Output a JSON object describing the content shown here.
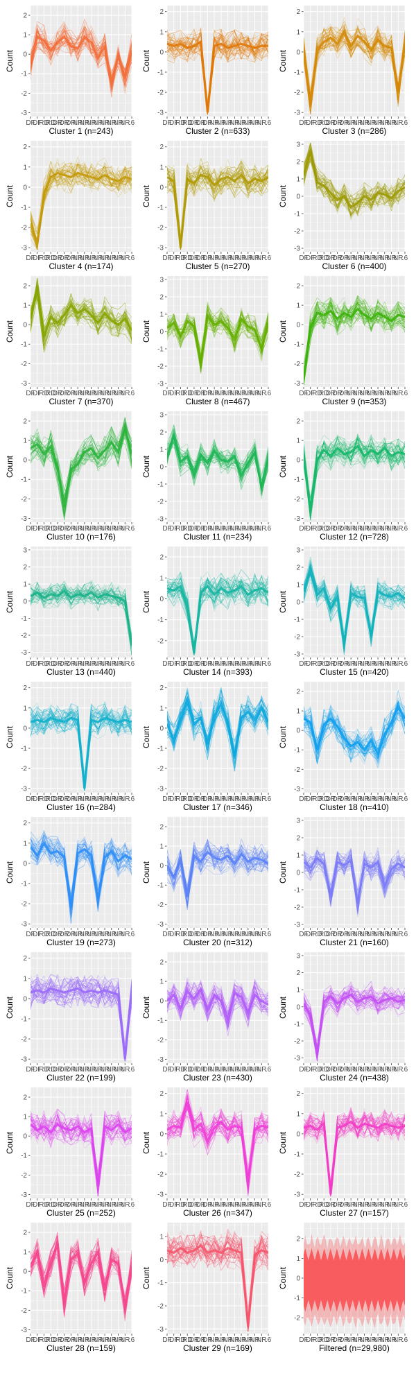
{
  "figure": {
    "ylabel": "Count",
    "xticks": [
      "DF",
      "DF",
      "RD",
      "RD",
      "DR",
      "DR",
      "DR",
      "NR",
      "NR",
      "NR",
      "NR",
      "NR",
      "NR",
      "NR",
      "NR",
      ".6"
    ],
    "yticks": [
      "-3",
      "-2",
      "-1",
      "0",
      "1",
      "2",
      "3"
    ]
  },
  "chart_data": [
    {
      "type": "line",
      "title": "Cluster 1 (n=243)",
      "color": "#F26E3B",
      "ylim": [
        -3.2,
        2.5
      ],
      "profile": [
        -0.5,
        0.9,
        0.7,
        0.2,
        0.6,
        0.9,
        0.4,
        0.3,
        0.9,
        0.6,
        -0.2,
        0.4,
        -1.5,
        -0.1,
        -1.2,
        0.2
      ]
    },
    {
      "type": "line",
      "title": "Cluster 2 (n=633)",
      "color": "#E07808",
      "ylim": [
        -3.2,
        2.3
      ],
      "profile": [
        0.4,
        0.3,
        0.4,
        0.2,
        0.3,
        0.5,
        -3.0,
        0.3,
        0.4,
        0.2,
        0.3,
        0.4,
        0.3,
        0.2,
        0.3,
        0.3
      ]
    },
    {
      "type": "line",
      "title": "Cluster 3 (n=286)",
      "color": "#D48A08",
      "ylim": [
        -3.2,
        2.3
      ],
      "profile": [
        0.2,
        -2.6,
        0.1,
        0.5,
        0.7,
        0.4,
        1.0,
        0.3,
        0.8,
        0.5,
        0.1,
        0.6,
        0.3,
        0.2,
        -2.0,
        0.4
      ]
    },
    {
      "type": "line",
      "title": "Cluster 4 (n=174)",
      "color": "#C49A0A",
      "ylim": [
        -3.2,
        2.3
      ],
      "profile": [
        -1.8,
        -2.8,
        -0.3,
        0.5,
        0.7,
        0.6,
        0.5,
        0.7,
        0.6,
        0.5,
        0.4,
        0.6,
        0.4,
        0.3,
        0.5,
        0.4
      ]
    },
    {
      "type": "line",
      "title": "Cluster 5 (n=270)",
      "color": "#B09A05",
      "ylim": [
        -3.2,
        2.3
      ],
      "profile": [
        0.5,
        0.3,
        -3.0,
        0.4,
        0.2,
        0.6,
        0.5,
        0.1,
        0.4,
        0.5,
        0.3,
        0.6,
        0.2,
        0.4,
        0.3,
        0.5
      ]
    },
    {
      "type": "line",
      "title": "Cluster 6 (n=400)",
      "color": "#9C9A06",
      "ylim": [
        -3.2,
        3.2
      ],
      "profile": [
        1.2,
        2.6,
        0.8,
        0.6,
        0.2,
        -0.2,
        0.0,
        -0.6,
        -0.4,
        0.0,
        -0.2,
        0.2,
        0.1,
        -0.1,
        0.3,
        0.5
      ]
    },
    {
      "type": "line",
      "title": "Cluster 7 (n=370)",
      "color": "#86A500",
      "ylim": [
        -3.2,
        2.5
      ],
      "profile": [
        0.3,
        2.0,
        -0.6,
        0.4,
        0.1,
        0.5,
        1.0,
        0.6,
        0.8,
        0.5,
        0.1,
        0.6,
        0.2,
        0.0,
        0.3,
        -0.3
      ]
    },
    {
      "type": "line",
      "title": "Cluster 8 (n=467)",
      "color": "#65AF00",
      "ylim": [
        -3.2,
        3.2
      ],
      "profile": [
        0.2,
        0.5,
        -0.3,
        0.6,
        0.3,
        -1.8,
        0.9,
        0.4,
        0.6,
        0.2,
        -0.4,
        0.7,
        0.3,
        0.1,
        -1.0,
        0.5
      ]
    },
    {
      "type": "line",
      "title": "Cluster 9 (n=353)",
      "color": "#3CB20A",
      "ylim": [
        -3.2,
        2.5
      ],
      "profile": [
        -2.8,
        -0.2,
        0.6,
        0.5,
        0.7,
        0.3,
        0.6,
        0.4,
        0.8,
        0.5,
        0.3,
        0.6,
        0.4,
        0.2,
        0.5,
        0.4
      ]
    },
    {
      "type": "line",
      "title": "Cluster 10 (n=176)",
      "color": "#2CB43C",
      "ylim": [
        -3.2,
        2.5
      ],
      "profile": [
        0.6,
        0.8,
        0.3,
        0.7,
        -0.4,
        -2.4,
        -0.5,
        -0.2,
        0.4,
        0.6,
        0.1,
        0.5,
        0.9,
        0.4,
        1.6,
        0.3
      ]
    },
    {
      "type": "line",
      "title": "Cluster 11 (n=234)",
      "color": "#1FB656",
      "ylim": [
        -3.2,
        3.2
      ],
      "profile": [
        0.6,
        1.8,
        0.3,
        0.6,
        -0.4,
        0.7,
        0.2,
        0.9,
        0.4,
        0.3,
        0.6,
        -0.5,
        0.2,
        0.8,
        -1.2,
        0.4
      ]
    },
    {
      "type": "line",
      "title": "Cluster 12 (n=728)",
      "color": "#16B86A",
      "ylim": [
        -3.2,
        2.5
      ],
      "profile": [
        0.3,
        -2.6,
        0.0,
        0.5,
        0.2,
        0.6,
        0.3,
        0.4,
        0.7,
        0.2,
        0.5,
        0.3,
        0.6,
        0.2,
        0.4,
        0.3
      ]
    },
    {
      "type": "line",
      "title": "Cluster 13 (n=440)",
      "color": "#18B38A",
      "ylim": [
        -3.3,
        3.2
      ],
      "profile": [
        0.3,
        0.5,
        0.2,
        0.4,
        0.3,
        0.6,
        0.2,
        0.4,
        0.3,
        0.5,
        0.2,
        0.4,
        0.3,
        0.2,
        0.0,
        -2.6
      ]
    },
    {
      "type": "line",
      "title": "Cluster 14 (n=393)",
      "color": "#17B6A2",
      "ylim": [
        -2.8,
        2.5
      ],
      "profile": [
        0.5,
        0.4,
        0.6,
        -0.4,
        -2.6,
        0.3,
        0.6,
        0.2,
        0.5,
        0.3,
        0.4,
        0.6,
        0.2,
        0.4,
        0.5,
        0.3
      ]
    },
    {
      "type": "line",
      "title": "Cluster 15 (n=420)",
      "color": "#14B3BC",
      "ylim": [
        -3.2,
        3.2
      ],
      "profile": [
        0.6,
        1.8,
        0.4,
        0.8,
        -0.4,
        0.3,
        -2.4,
        0.5,
        0.3,
        0.2,
        -2.0,
        0.6,
        0.4,
        0.3,
        0.5,
        0.2
      ]
    },
    {
      "type": "line",
      "title": "Cluster 16 (n=284)",
      "color": "#12B0CC",
      "ylim": [
        -3.2,
        2.3
      ],
      "profile": [
        0.3,
        0.4,
        0.3,
        0.5,
        0.4,
        0.3,
        0.5,
        0.4,
        -3.0,
        0.4,
        0.3,
        0.5,
        0.4,
        0.3,
        0.4,
        0.3
      ]
    },
    {
      "type": "line",
      "title": "Cluster 17 (n=346)",
      "color": "#10A8DE",
      "ylim": [
        -3.2,
        2.3
      ],
      "profile": [
        0.2,
        -0.6,
        0.4,
        1.4,
        0.2,
        0.5,
        -0.8,
        0.6,
        1.2,
        0.3,
        -1.4,
        0.5,
        0.8,
        0.4,
        1.0,
        0.3
      ]
    },
    {
      "type": "line",
      "title": "Cluster 18 (n=410)",
      "color": "#12A0EE",
      "ylim": [
        -3.2,
        2.5
      ],
      "profile": [
        0.6,
        0.4,
        -1.0,
        0.3,
        0.6,
        0.2,
        -0.4,
        -0.8,
        -0.6,
        -1.0,
        -0.5,
        -1.2,
        -0.2,
        0.4,
        1.2,
        0.6
      ]
    },
    {
      "type": "line",
      "title": "Cluster 19 (n=273)",
      "color": "#2E8EF6",
      "ylim": [
        -3.2,
        2.3
      ],
      "profile": [
        0.8,
        0.4,
        1.0,
        0.5,
        0.6,
        0.3,
        -2.2,
        0.5,
        0.7,
        0.4,
        -1.8,
        0.3,
        0.6,
        0.1,
        0.4,
        0.2
      ]
    },
    {
      "type": "line",
      "title": "Cluster 20 (n=312)",
      "color": "#5A82F7",
      "ylim": [
        -3.2,
        2.5
      ],
      "profile": [
        0.0,
        -0.6,
        0.3,
        -1.6,
        0.5,
        0.2,
        0.7,
        0.4,
        0.3,
        0.5,
        0.1,
        0.6,
        0.2,
        0.4,
        0.3,
        0.1
      ]
    },
    {
      "type": "line",
      "title": "Cluster 21 (n=160)",
      "color": "#7C7CF7",
      "ylim": [
        -3.2,
        3.2
      ],
      "profile": [
        0.6,
        0.3,
        0.8,
        0.5,
        -1.4,
        0.6,
        0.4,
        0.7,
        -1.8,
        0.5,
        0.3,
        0.6,
        -0.8,
        0.2,
        0.5,
        0.3
      ]
    },
    {
      "type": "line",
      "title": "Cluster 22 (n=199)",
      "color": "#9B6CF9",
      "ylim": [
        -3.2,
        2.3
      ],
      "profile": [
        0.3,
        0.4,
        0.3,
        0.5,
        0.4,
        0.3,
        0.4,
        0.5,
        0.3,
        0.4,
        0.3,
        0.4,
        0.3,
        0.2,
        -3.0,
        0.4
      ]
    },
    {
      "type": "line",
      "title": "Cluster 23 (n=430)",
      "color": "#B15DF9",
      "ylim": [
        -3.2,
        2.5
      ],
      "profile": [
        0.0,
        0.3,
        -0.4,
        0.5,
        0.1,
        0.6,
        -0.5,
        0.3,
        0.0,
        -1.0,
        0.4,
        0.2,
        -0.6,
        0.3,
        0.0,
        -0.2
      ]
    },
    {
      "type": "line",
      "title": "Cluster 24 (n=438)",
      "color": "#C450F4",
      "ylim": [
        -3.3,
        3.2
      ],
      "profile": [
        0.2,
        -0.5,
        -2.8,
        0.3,
        0.6,
        0.2,
        0.5,
        0.7,
        0.3,
        0.5,
        0.6,
        0.2,
        0.4,
        0.5,
        0.3,
        0.4
      ]
    },
    {
      "type": "line",
      "title": "Cluster 25 (n=252)",
      "color": "#DB44EE",
      "ylim": [
        -3.2,
        2.5
      ],
      "profile": [
        0.6,
        0.3,
        0.5,
        0.2,
        0.6,
        0.4,
        0.3,
        0.5,
        0.2,
        0.4,
        -2.6,
        0.5,
        0.3,
        0.6,
        0.2,
        0.4
      ]
    },
    {
      "type": "line",
      "title": "Cluster 26 (n=347)",
      "color": "#EE3FD8",
      "ylim": [
        -3.2,
        2.3
      ],
      "profile": [
        0.2,
        0.4,
        0.3,
        1.6,
        0.2,
        0.5,
        -0.4,
        0.3,
        0.6,
        0.2,
        0.4,
        0.3,
        -2.4,
        0.2,
        0.4,
        0.3
      ]
    },
    {
      "type": "line",
      "title": "Cluster 27 (n=157)",
      "color": "#F23DC6",
      "ylim": [
        -3.2,
        2.3
      ],
      "profile": [
        0.3,
        0.4,
        0.2,
        0.5,
        -3.0,
        0.3,
        0.4,
        0.6,
        0.3,
        0.5,
        0.4,
        0.3,
        0.5,
        0.4,
        0.3,
        0.4
      ]
    },
    {
      "type": "line",
      "title": "Cluster 28 (n=159)",
      "color": "#F5468E",
      "ylim": [
        -3.2,
        2.5
      ],
      "profile": [
        0.2,
        1.0,
        -0.8,
        0.5,
        1.4,
        -1.6,
        0.6,
        0.9,
        -0.6,
        0.4,
        1.0,
        -1.0,
        0.6,
        0.4,
        -1.8,
        0.3
      ]
    },
    {
      "type": "line",
      "title": "Cluster 29 (n=169)",
      "color": "#F5566E",
      "ylim": [
        -3.2,
        1.6
      ],
      "profile": [
        0.4,
        0.3,
        0.5,
        0.3,
        0.4,
        0.6,
        0.3,
        0.4,
        0.3,
        0.5,
        0.4,
        0.3,
        -2.9,
        0.2,
        0.4,
        0.3
      ]
    },
    {
      "type": "line",
      "title": "Filtered (n=29,980)",
      "color": "#F8565A",
      "ylim": [
        -2.8,
        2.8
      ],
      "profile": [
        0,
        0,
        0,
        0,
        0,
        0,
        0,
        0,
        0,
        0,
        0,
        0,
        0,
        0,
        0,
        0
      ],
      "filled": true
    }
  ]
}
